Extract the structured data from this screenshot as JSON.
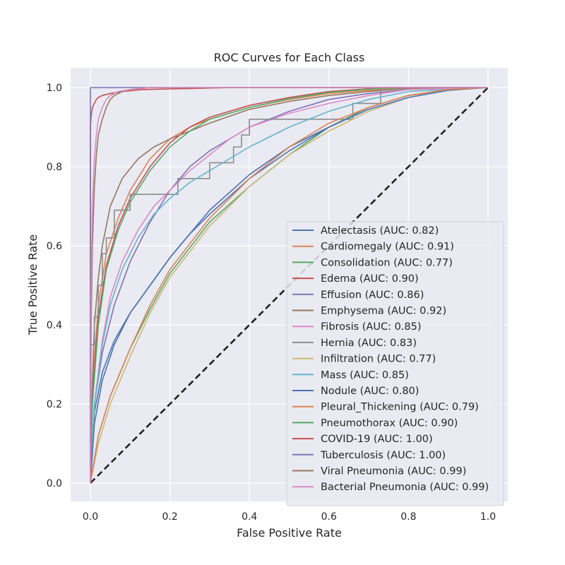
{
  "chart_data": {
    "type": "line",
    "title": "ROC Curves for Each Class",
    "xlabel": "False Positive Rate",
    "ylabel": "True Positive Rate",
    "xlim": [
      -0.05,
      1.05
    ],
    "ylim": [
      -0.05,
      1.05
    ],
    "x_ticks": [
      "0.0",
      "0.2",
      "0.4",
      "0.6",
      "0.8",
      "1.0"
    ],
    "y_ticks": [
      "0.0",
      "0.2",
      "0.4",
      "0.6",
      "0.8",
      "1.0"
    ],
    "grid": true,
    "legend_position": "lower-right",
    "reference_line": {
      "x": [
        0,
        1
      ],
      "y": [
        0,
        1
      ],
      "color": "#222222",
      "style": "dashed"
    },
    "series": [
      {
        "name": "Atelectasis (AUC: 0.82)",
        "color": "#4c72b0",
        "x": [
          0,
          0.01,
          0.03,
          0.06,
          0.1,
          0.15,
          0.2,
          0.25,
          0.3,
          0.4,
          0.5,
          0.6,
          0.7,
          0.8,
          0.9,
          1.0
        ],
        "y": [
          0,
          0.18,
          0.28,
          0.36,
          0.43,
          0.5,
          0.57,
          0.63,
          0.69,
          0.78,
          0.85,
          0.9,
          0.95,
          0.98,
          0.995,
          1.0
        ]
      },
      {
        "name": "Cardiomegaly (AUC: 0.91)",
        "color": "#dd8452",
        "x": [
          0,
          0.005,
          0.02,
          0.04,
          0.07,
          0.1,
          0.15,
          0.2,
          0.25,
          0.3,
          0.4,
          0.5,
          0.6,
          0.7,
          0.8,
          1.0
        ],
        "y": [
          0,
          0.25,
          0.45,
          0.58,
          0.67,
          0.74,
          0.82,
          0.87,
          0.9,
          0.92,
          0.95,
          0.97,
          0.985,
          0.993,
          0.998,
          1.0
        ]
      },
      {
        "name": "Consolidation (AUC: 0.77)",
        "color": "#55a868",
        "x": [
          0,
          0.02,
          0.05,
          0.1,
          0.15,
          0.2,
          0.3,
          0.4,
          0.5,
          0.6,
          0.7,
          0.8,
          0.9,
          1.0
        ],
        "y": [
          0,
          0.12,
          0.22,
          0.34,
          0.44,
          0.53,
          0.66,
          0.75,
          0.83,
          0.9,
          0.95,
          0.98,
          0.995,
          1.0
        ]
      },
      {
        "name": "Edema (AUC: 0.90)",
        "color": "#c44e52",
        "x": [
          0,
          0.005,
          0.02,
          0.04,
          0.07,
          0.1,
          0.15,
          0.2,
          0.25,
          0.3,
          0.4,
          0.5,
          0.6,
          0.7,
          0.8,
          1.0
        ],
        "y": [
          0,
          0.22,
          0.42,
          0.55,
          0.65,
          0.72,
          0.8,
          0.86,
          0.9,
          0.925,
          0.955,
          0.975,
          0.99,
          0.997,
          1.0,
          1.0
        ]
      },
      {
        "name": "Effusion (AUC: 0.86)",
        "color": "#8172b3",
        "x": [
          0,
          0.01,
          0.03,
          0.06,
          0.1,
          0.15,
          0.2,
          0.25,
          0.3,
          0.4,
          0.5,
          0.6,
          0.7,
          0.8,
          1.0
        ],
        "y": [
          0,
          0.2,
          0.33,
          0.45,
          0.56,
          0.66,
          0.74,
          0.8,
          0.84,
          0.9,
          0.94,
          0.97,
          0.985,
          0.995,
          1.0
        ]
      },
      {
        "name": "Emphysema (AUC: 0.92)",
        "color": "#937860",
        "x": [
          0,
          0.005,
          0.01,
          0.02,
          0.03,
          0.05,
          0.08,
          0.12,
          0.16,
          0.2,
          0.25,
          0.3,
          0.4,
          0.5,
          0.6,
          0.7,
          0.8,
          1.0
        ],
        "y": [
          0,
          0.25,
          0.4,
          0.52,
          0.6,
          0.7,
          0.77,
          0.82,
          0.85,
          0.87,
          0.89,
          0.91,
          0.945,
          0.965,
          0.98,
          0.99,
          0.998,
          1.0
        ]
      },
      {
        "name": "Fibrosis (AUC: 0.85)",
        "color": "#da8bc3",
        "x": [
          0,
          0.01,
          0.03,
          0.05,
          0.08,
          0.12,
          0.16,
          0.2,
          0.25,
          0.3,
          0.35,
          0.4,
          0.5,
          0.6,
          0.7,
          0.8,
          1.0
        ],
        "y": [
          0,
          0.2,
          0.36,
          0.47,
          0.56,
          0.64,
          0.7,
          0.74,
          0.79,
          0.83,
          0.87,
          0.9,
          0.935,
          0.96,
          0.98,
          0.995,
          1.0
        ]
      },
      {
        "name": "Hernia (AUC: 0.83)",
        "color": "#8c8c8c",
        "step": true,
        "x": [
          0,
          0.01,
          0.02,
          0.03,
          0.04,
          0.06,
          0.1,
          0.22,
          0.3,
          0.36,
          0.38,
          0.4,
          0.66,
          0.73,
          0.8,
          1.0
        ],
        "y": [
          0,
          0.35,
          0.42,
          0.5,
          0.58,
          0.62,
          0.69,
          0.73,
          0.77,
          0.81,
          0.85,
          0.88,
          0.92,
          0.96,
          1.0,
          1.0
        ]
      },
      {
        "name": "Infiltration (AUC: 0.77)",
        "color": "#ccb974",
        "x": [
          0,
          0.02,
          0.05,
          0.1,
          0.15,
          0.2,
          0.3,
          0.4,
          0.5,
          0.6,
          0.7,
          0.8,
          0.9,
          1.0
        ],
        "y": [
          0,
          0.1,
          0.2,
          0.32,
          0.43,
          0.52,
          0.65,
          0.75,
          0.83,
          0.89,
          0.94,
          0.975,
          0.995,
          1.0
        ]
      },
      {
        "name": "Mass (AUC: 0.85)",
        "color": "#64b5cd",
        "x": [
          0,
          0.01,
          0.03,
          0.05,
          0.08,
          0.12,
          0.16,
          0.2,
          0.25,
          0.3,
          0.4,
          0.5,
          0.6,
          0.7,
          0.8,
          1.0
        ],
        "y": [
          0,
          0.2,
          0.35,
          0.45,
          0.54,
          0.62,
          0.68,
          0.72,
          0.76,
          0.79,
          0.85,
          0.9,
          0.94,
          0.97,
          0.99,
          1.0
        ]
      },
      {
        "name": "Nodule (AUC: 0.80)",
        "color": "#4c72b0",
        "x": [
          0,
          0.01,
          0.03,
          0.06,
          0.1,
          0.15,
          0.2,
          0.25,
          0.3,
          0.4,
          0.5,
          0.6,
          0.7,
          0.8,
          0.9,
          1.0
        ],
        "y": [
          0,
          0.15,
          0.26,
          0.35,
          0.43,
          0.5,
          0.57,
          0.63,
          0.68,
          0.77,
          0.84,
          0.9,
          0.945,
          0.975,
          0.993,
          1.0
        ]
      },
      {
        "name": "Pleural_Thickening (AUC: 0.79)",
        "color": "#dd8452",
        "x": [
          0,
          0.02,
          0.05,
          0.1,
          0.15,
          0.2,
          0.3,
          0.4,
          0.5,
          0.6,
          0.7,
          0.8,
          0.9,
          1.0
        ],
        "y": [
          0,
          0.12,
          0.22,
          0.34,
          0.45,
          0.54,
          0.67,
          0.77,
          0.85,
          0.91,
          0.95,
          0.98,
          0.995,
          1.0
        ]
      },
      {
        "name": "Pneumothorax (AUC: 0.90)",
        "color": "#55a868",
        "x": [
          0,
          0.005,
          0.02,
          0.04,
          0.07,
          0.1,
          0.15,
          0.2,
          0.25,
          0.3,
          0.4,
          0.5,
          0.6,
          0.7,
          0.8,
          1.0
        ],
        "y": [
          0,
          0.2,
          0.4,
          0.54,
          0.64,
          0.71,
          0.79,
          0.85,
          0.89,
          0.92,
          0.95,
          0.972,
          0.988,
          0.996,
          1.0,
          1.0
        ]
      },
      {
        "name": "COVID-19 (AUC: 1.00)",
        "color": "#c44e52",
        "x": [
          0,
          0.0,
          0.002,
          0.005,
          0.01,
          0.015,
          0.02,
          0.03,
          0.05,
          0.08,
          0.13,
          0.36,
          1.0
        ],
        "y": [
          0,
          0.9,
          0.93,
          0.95,
          0.96,
          0.97,
          0.975,
          0.98,
          0.985,
          0.99,
          0.995,
          1.0,
          1.0
        ]
      },
      {
        "name": "Tuberculosis (AUC: 1.00)",
        "color": "#8172b3",
        "x": [
          0,
          0.0,
          0.0,
          1.0
        ],
        "y": [
          0,
          0.95,
          1.0,
          1.0
        ]
      },
      {
        "name": "Viral Pneumonia (AUC: 0.99)",
        "color": "#937860",
        "x": [
          0,
          0.002,
          0.005,
          0.01,
          0.015,
          0.02,
          0.03,
          0.04,
          0.05,
          0.06,
          0.08,
          0.1,
          0.15,
          1.0
        ],
        "y": [
          0,
          0.4,
          0.6,
          0.75,
          0.83,
          0.88,
          0.92,
          0.95,
          0.97,
          0.98,
          0.99,
          0.995,
          1.0,
          1.0
        ]
      },
      {
        "name": "Bacterial Pneumonia (AUC: 0.99)",
        "color": "#da8bc3",
        "x": [
          0,
          0.002,
          0.005,
          0.01,
          0.015,
          0.02,
          0.03,
          0.04,
          0.05,
          0.07,
          0.1,
          0.15,
          1.0
        ],
        "y": [
          0,
          0.5,
          0.7,
          0.82,
          0.88,
          0.92,
          0.95,
          0.97,
          0.98,
          0.99,
          0.995,
          1.0,
          1.0
        ]
      }
    ]
  }
}
